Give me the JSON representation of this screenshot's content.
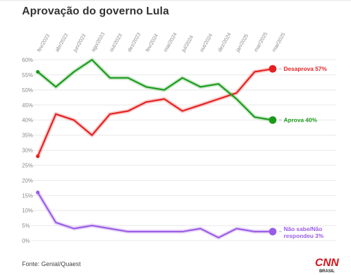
{
  "header": {
    "title": "Aprovação do governo Lula"
  },
  "footer": {
    "source": "Fonte: Genial/Quaest",
    "logo_top": "CNN",
    "logo_bottom": "BRASIL"
  },
  "colors": {
    "desaprova": "#e62020",
    "aprova": "#1a9a1a",
    "nao_sabe": "#9a5ce6",
    "grid": "#e8e8e8",
    "logo": "#d7141a"
  },
  "chart_data": {
    "type": "line",
    "title": "Aprovação do governo Lula",
    "xlabel": "",
    "ylabel": "",
    "ylim": [
      0,
      60
    ],
    "grid": true,
    "x_ticks": [
      "fev/2023",
      "abr/2023",
      "jun/2023",
      "ago/2023",
      "out/2023",
      "dez/2023",
      "fev/2024",
      "mai/2024",
      "jul/2024",
      "out/2024",
      "dez/2024",
      "jan/2025",
      "mar/2025",
      "mai/2025"
    ],
    "y_ticks": [
      "0%",
      "5%",
      "10%",
      "15%",
      "20%",
      "25%",
      "30%",
      "35%",
      "40%",
      "45%",
      "50%",
      "55%",
      "60%"
    ],
    "series": [
      {
        "key": "desaprova",
        "name": "Desaprova 57%",
        "values": [
          28,
          42,
          40,
          35,
          42,
          43,
          46,
          47,
          43,
          45,
          47,
          49,
          56,
          57
        ]
      },
      {
        "key": "aprova",
        "name": "Aprova 40%",
        "values": [
          56,
          51,
          56,
          60,
          54,
          54,
          51,
          50,
          54,
          51,
          52,
          47,
          41,
          40
        ]
      },
      {
        "key": "nao_sabe",
        "name": "Não sabe/Não respondeu 3%",
        "label_lines": [
          "Não sabe/Não",
          "respondeu 3%"
        ],
        "values": [
          16,
          6,
          4,
          5,
          4,
          3,
          3,
          3,
          3,
          4,
          1,
          4,
          3,
          3
        ]
      }
    ]
  }
}
